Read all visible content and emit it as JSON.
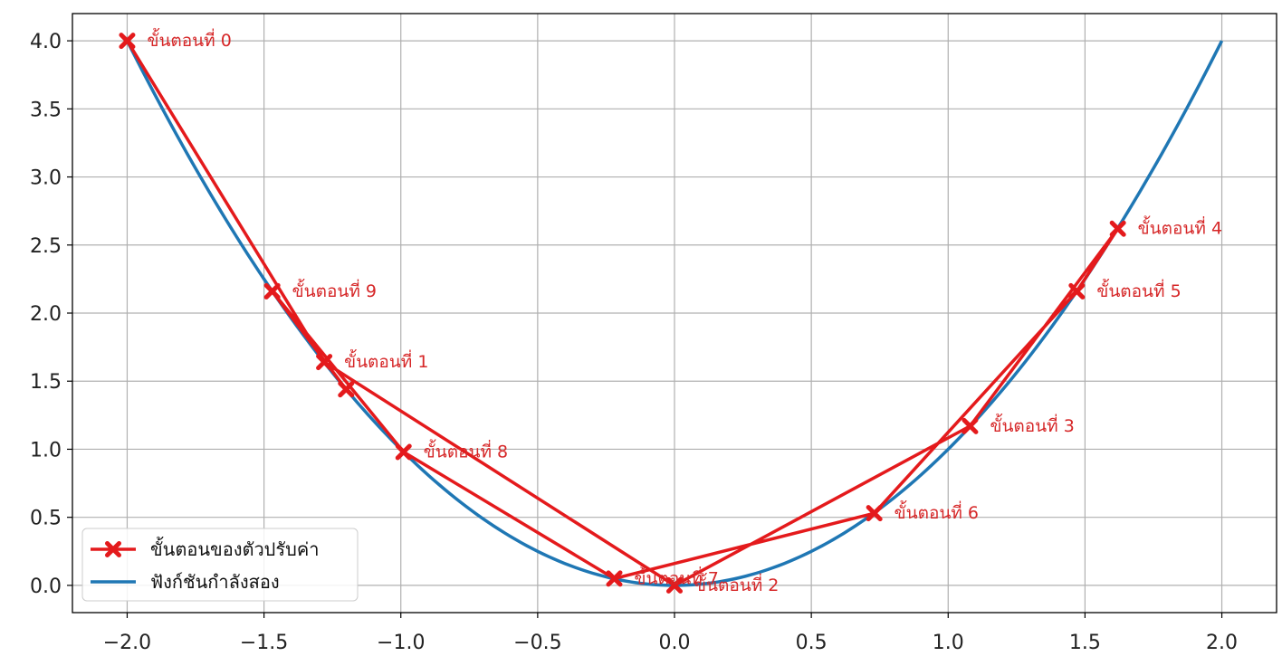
{
  "chart_data": {
    "type": "line",
    "xlim": [
      -2.2,
      2.2
    ],
    "ylim": [
      -0.2,
      4.2
    ],
    "xticks": [
      -2.0,
      -1.5,
      -1.0,
      -0.5,
      0.0,
      0.5,
      1.0,
      1.5,
      2.0
    ],
    "xtick_labels": [
      "−2.0",
      "−1.5",
      "−1.0",
      "−0.5",
      "0.0",
      "0.5",
      "1.0",
      "1.5",
      "2.0"
    ],
    "yticks": [
      0.0,
      0.5,
      1.0,
      1.5,
      2.0,
      2.5,
      3.0,
      3.5,
      4.0
    ],
    "ytick_labels": [
      "0.0",
      "0.5",
      "1.0",
      "1.5",
      "2.0",
      "2.5",
      "3.0",
      "3.5",
      "4.0"
    ],
    "grid": true,
    "legend_position": "bottom-left",
    "series": [
      {
        "name": "ขั้นตอนของตัวปรับค่า",
        "color": "#e41a1c",
        "marker": "x",
        "x": [
          -2.0,
          -1.28,
          0.0,
          1.08,
          1.62,
          1.47,
          0.73,
          -0.22,
          -0.99,
          -1.47,
          -1.2
        ],
        "y": [
          4.0,
          1.64,
          0.0,
          1.17,
          2.62,
          2.16,
          0.53,
          0.05,
          0.98,
          2.16,
          1.44
        ]
      },
      {
        "name": "ฟังก์ชันกำลังสอง",
        "color": "#1f77b4",
        "function": "y = x^2",
        "x_range": [
          -2.0,
          2.0
        ]
      }
    ],
    "annotations": [
      {
        "text": "ขั้นตอนที่ 0",
        "x": -2.0,
        "y": 4.0
      },
      {
        "text": "ขั้นตอนที่ 1",
        "x": -1.28,
        "y": 1.64
      },
      {
        "text": "ขั้นตอนที่ 2",
        "x": 0.0,
        "y": 0.0
      },
      {
        "text": "ขั้นตอนที่ 3",
        "x": 1.08,
        "y": 1.17
      },
      {
        "text": "ขั้นตอนที่ 4",
        "x": 1.62,
        "y": 2.62
      },
      {
        "text": "ขั้นตอนที่ 5",
        "x": 1.47,
        "y": 2.16
      },
      {
        "text": "ขั้นตอนที่ 6",
        "x": 0.73,
        "y": 0.53
      },
      {
        "text": "ขั้นตอนที่ 7",
        "x": -0.22,
        "y": 0.05
      },
      {
        "text": "ขั้นตอนที่ 8",
        "x": -0.99,
        "y": 0.98
      },
      {
        "text": "ขั้นตอนที่ 9",
        "x": -1.47,
        "y": 2.16
      }
    ],
    "title": "",
    "xlabel": "",
    "ylabel": ""
  }
}
